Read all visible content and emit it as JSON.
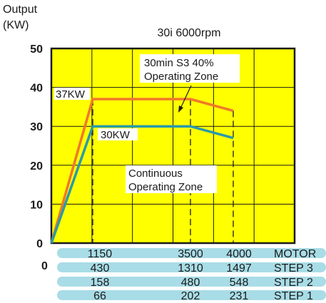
{
  "chart_data": {
    "type": "line",
    "title": "30i 6000rpm",
    "ylabel_line1": "Output",
    "ylabel_line2": "(KW)",
    "ylim": [
      0,
      50
    ],
    "yticks": [
      "0",
      "10",
      "20",
      "30",
      "40",
      "50"
    ],
    "y_values": [
      0,
      10,
      20,
      30,
      40,
      50
    ],
    "x_origin_label": "0",
    "grid": true,
    "background_color": "#ffff00",
    "speed_breakpoints": [
      1150,
      3500,
      4000
    ],
    "speed_rows": [
      {
        "label": "MOTOR",
        "values": [
          "1150",
          "3500",
          "4000"
        ]
      },
      {
        "label": "STEP 3",
        "values": [
          "430",
          "1310",
          "1497"
        ]
      },
      {
        "label": "STEP 2",
        "values": [
          "158",
          "480",
          "548"
        ]
      },
      {
        "label": "STEP 1",
        "values": [
          "66",
          "202",
          "231"
        ]
      }
    ],
    "series": [
      {
        "color": "#f0782a",
        "points": [
          [
            0,
            0
          ],
          [
            1150,
            37
          ],
          [
            3500,
            37
          ],
          [
            4000,
            34
          ]
        ]
      },
      {
        "color": "#2a9aa8",
        "points": [
          [
            0,
            0
          ],
          [
            1150,
            30
          ],
          [
            3500,
            30
          ],
          [
            4000,
            27
          ]
        ]
      }
    ],
    "annotations": {
      "peak_power": "37KW",
      "continuous_power": "30KW",
      "s3_zone_line1": "30min S3 40%",
      "s3_zone_line2": "Operating Zone",
      "cont_zone_line1": "Continuous",
      "cont_zone_line2": "Operating Zone"
    },
    "row_bar_color": "#a8dce6"
  }
}
